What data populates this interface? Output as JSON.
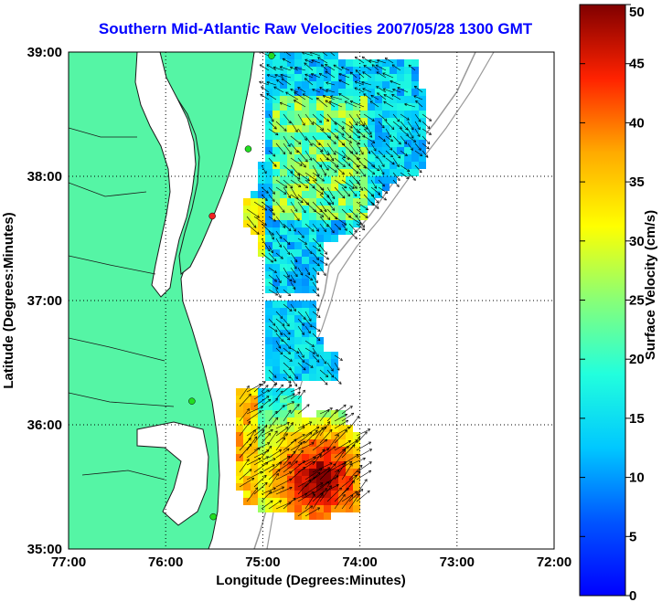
{
  "title": "Southern Mid-Atlantic Raw Velocities 2007/05/28 1300 GMT",
  "map": {
    "xlabel": "Longitude (Degrees:Minutes)",
    "ylabel": "Latitude (Degrees:Minutes)",
    "lon_range": [
      -77,
      -72
    ],
    "lat_range": [
      35,
      39
    ],
    "x_ticks": [
      "77:00",
      "76:00",
      "75:00",
      "74:00",
      "73:00",
      "72:00"
    ],
    "y_ticks": [
      "35:00",
      "36:00",
      "37:00",
      "38:00",
      "39:00"
    ],
    "grid": "dotted",
    "land_color": "#55f5a5",
    "water_color": "#ffffff",
    "coast_color": "#1a1a1a",
    "bathymetry_color": "#9a9a9a"
  },
  "colorbar": {
    "label": "Surface Velocity (cm/s)",
    "min": 0,
    "max": 50,
    "ticks": [
      "0",
      "5",
      "10",
      "15",
      "20",
      "25",
      "30",
      "35",
      "40",
      "45",
      "50"
    ],
    "colormap": "jet"
  },
  "stations": [
    {
      "lon": -74.91,
      "lat": 38.97,
      "color": "#22dd22"
    },
    {
      "lon": -75.15,
      "lat": 38.22,
      "color": "#22dd22"
    },
    {
      "lon": -75.52,
      "lat": 37.68,
      "color": "#ee2222"
    },
    {
      "lon": -75.73,
      "lat": 36.19,
      "color": "#22dd22"
    },
    {
      "lon": -75.51,
      "lat": 35.26,
      "color": "#22dd22"
    }
  ]
}
